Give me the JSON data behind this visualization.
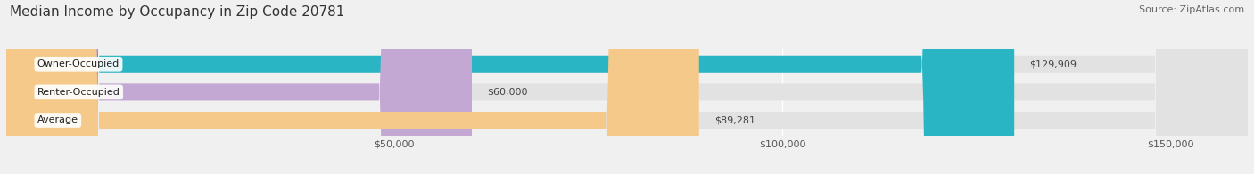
{
  "title": "Median Income by Occupancy in Zip Code 20781",
  "source": "Source: ZipAtlas.com",
  "categories": [
    "Owner-Occupied",
    "Renter-Occupied",
    "Average"
  ],
  "values": [
    129909,
    60000,
    89281
  ],
  "labels": [
    "$129,909",
    "$60,000",
    "$89,281"
  ],
  "bar_colors": [
    "#29b5c3",
    "#c4a8d4",
    "#f5c98a"
  ],
  "xlim": [
    0,
    160000
  ],
  "xticks": [
    50000,
    100000,
    150000
  ],
  "xticklabels": [
    "$50,000",
    "$100,000",
    "$150,000"
  ],
  "background_color": "#f0f0f0",
  "bar_bg_color": "#e2e2e2",
  "title_fontsize": 11,
  "source_fontsize": 8,
  "label_fontsize": 8,
  "tick_fontsize": 8
}
